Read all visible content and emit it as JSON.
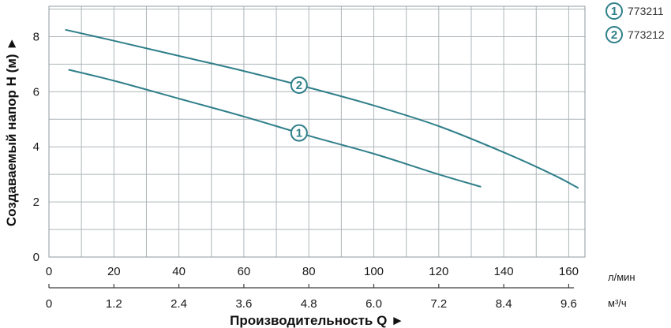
{
  "chart_data": {
    "type": "line",
    "ylabel": "Создаваемый напор H (м) ►",
    "xlabel": "Производительность Q ►",
    "x_unit_primary": "л/мин",
    "x_unit_secondary": "м³/ч",
    "xlim": [
      0,
      165
    ],
    "ylim": [
      0,
      9.1
    ],
    "x_ticks": [
      0,
      20,
      40,
      60,
      80,
      100,
      120,
      140,
      160
    ],
    "x_ticks_secondary": [
      "0",
      "1.2",
      "2.4",
      "3.6",
      "4.8",
      "6.0",
      "7.2",
      "8.4",
      "9.6"
    ],
    "y_ticks": [
      0,
      2,
      4,
      6,
      8
    ],
    "grid": true,
    "legend_position": "top-right",
    "series": [
      {
        "name": "773211",
        "marker": "1",
        "color": "#2f7f8a",
        "x": [
          6,
          20,
          40,
          60,
          80,
          100,
          120,
          133
        ],
        "y": [
          6.8,
          6.4,
          5.75,
          5.1,
          4.4,
          3.75,
          3.0,
          2.55
        ],
        "marker_at": 77
      },
      {
        "name": "773212",
        "marker": "2",
        "color": "#2f7f8a",
        "x": [
          5,
          20,
          40,
          60,
          80,
          100,
          120,
          140,
          155,
          163
        ],
        "y": [
          8.25,
          7.85,
          7.3,
          6.75,
          6.15,
          5.5,
          4.75,
          3.8,
          3.0,
          2.5
        ],
        "marker_at": 77
      }
    ]
  }
}
